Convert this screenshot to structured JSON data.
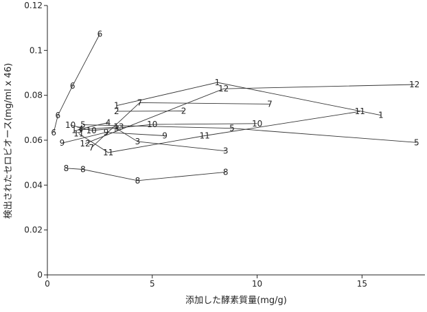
{
  "chart_data": {
    "type": "line",
    "xlabel": "添加した酵素質量(mg/g)",
    "ylabel": "検出されたセロビオース(mg/ml x 46)",
    "xlim": [
      0,
      18
    ],
    "ylim": [
      0,
      0.12
    ],
    "x_ticks": [
      0,
      5,
      10,
      15
    ],
    "y_ticks": [
      0,
      0.02,
      0.04,
      0.06,
      0.08,
      0.1,
      0.12
    ],
    "x_tick_labels": [
      "0",
      "5",
      "10",
      "15"
    ],
    "y_tick_labels": [
      "0",
      "0.02",
      "0.04",
      "0.06",
      "0.08",
      "0.1",
      "0.12"
    ],
    "grid": false,
    "legend": "none",
    "series": [
      {
        "label": "1",
        "x": [
          3.3,
          8.1,
          15.9
        ],
        "y": [
          0.0754,
          0.0857,
          0.0711
        ]
      },
      {
        "label": "2",
        "x": [
          3.3,
          6.5
        ],
        "y": [
          0.0729,
          0.073
        ]
      },
      {
        "label": "3",
        "x": [
          3.3,
          4.3,
          8.5
        ],
        "y": [
          0.0652,
          0.0594,
          0.0552
        ]
      },
      {
        "label": "4",
        "x": [
          1.6,
          2.9
        ],
        "y": [
          0.0651,
          0.0678
        ]
      },
      {
        "label": "5",
        "x": [
          1.7,
          8.8,
          17.6
        ],
        "y": [
          0.0669,
          0.0653,
          0.059
        ]
      },
      {
        "label": "6",
        "x": [
          0.3,
          0.5,
          1.2,
          2.5
        ],
        "y": [
          0.0634,
          0.071,
          0.0842,
          0.1073
        ]
      },
      {
        "label": "7",
        "x": [
          2.1,
          4.4,
          10.6
        ],
        "y": [
          0.0567,
          0.0767,
          0.0761
        ]
      },
      {
        "label": "8",
        "x": [
          0.9,
          1.7,
          4.3,
          8.5
        ],
        "y": [
          0.0475,
          0.047,
          0.042,
          0.0458
        ]
      },
      {
        "label": "9",
        "x": [
          0.7,
          2.8,
          5.6
        ],
        "y": [
          0.0587,
          0.0635,
          0.062
        ]
      },
      {
        "label": "10",
        "x": [
          1.1,
          2.1,
          5.0,
          10.0
        ],
        "y": [
          0.0668,
          0.0643,
          0.067,
          0.0674
        ]
      },
      {
        "label": "11",
        "x": [
          1.5,
          2.9,
          7.5,
          14.9
        ],
        "y": [
          0.0629,
          0.0545,
          0.062,
          0.0728
        ]
      },
      {
        "label": "12",
        "x": [
          1.8,
          8.4,
          17.5
        ],
        "y": [
          0.0585,
          0.0829,
          0.0848
        ]
      },
      {
        "label": "13",
        "x": [
          1.4,
          3.4
        ],
        "y": [
          0.0645,
          0.066
        ]
      }
    ]
  }
}
